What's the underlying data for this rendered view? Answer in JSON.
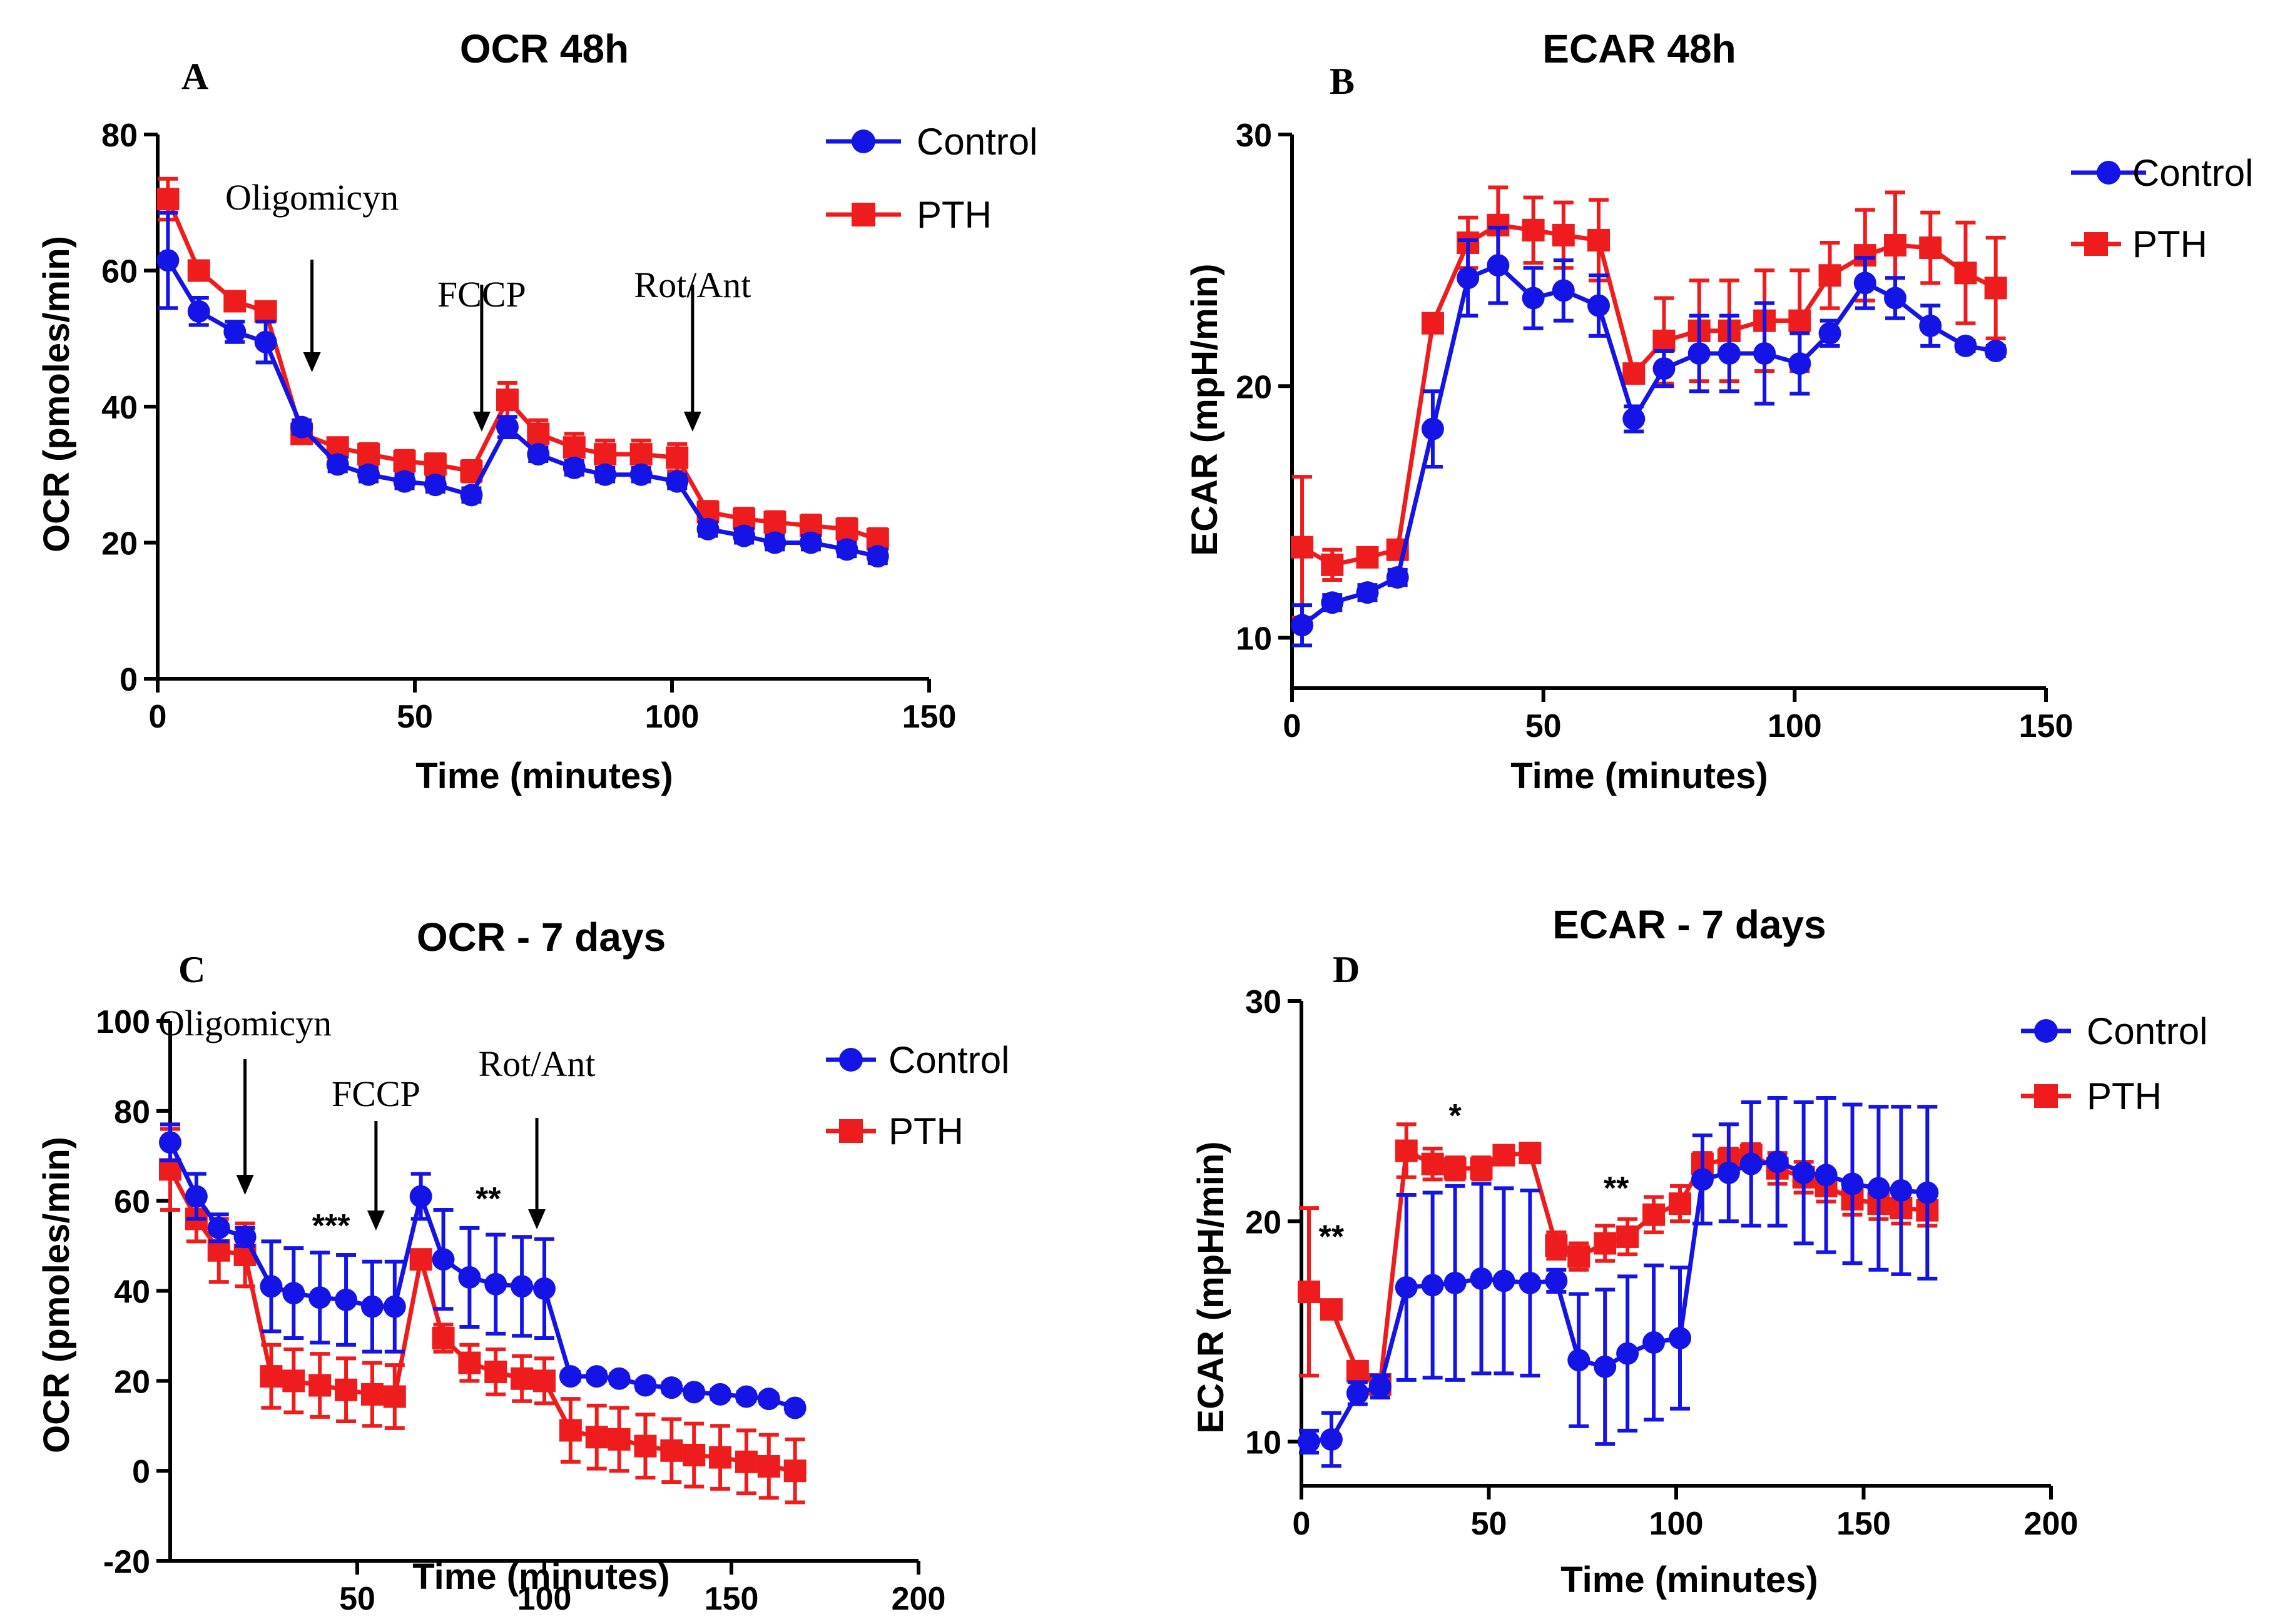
{
  "chart_data": [
    {
      "panel": "A",
      "type": "line",
      "title": "OCR 48h",
      "xlabel": "Time (minutes)",
      "ylabel": "OCR (pmoles/min)",
      "xlim": [
        0,
        150
      ],
      "ylim": [
        0,
        80
      ],
      "xticks": [
        0,
        50,
        100,
        150
      ],
      "yticks": [
        0,
        20,
        40,
        60,
        80
      ],
      "x": [
        2,
        8,
        15,
        21,
        28,
        35,
        41,
        48,
        54,
        61,
        68,
        74,
        81,
        87,
        94,
        101,
        107,
        114,
        120,
        127,
        134,
        140
      ],
      "series": [
        {
          "name": "Control",
          "color": "#1414e6",
          "marker": "circle",
          "values": [
            61.5,
            54,
            51,
            49.5,
            37,
            31.5,
            30,
            29,
            28.5,
            27,
            37,
            33,
            31,
            30,
            30,
            29,
            22,
            21,
            20,
            20,
            19,
            18
          ],
          "errors": [
            7,
            2,
            1.5,
            3,
            1,
            1,
            1,
            1,
            1,
            1,
            1.5,
            1,
            1,
            1,
            1,
            1,
            1,
            1,
            1,
            1,
            1,
            1
          ]
        },
        {
          "name": "PTH",
          "color": "#ee1c1c",
          "marker": "square",
          "values": [
            70.5,
            60,
            55.5,
            54,
            36,
            34,
            33,
            32,
            31.5,
            30.5,
            41,
            36,
            34,
            33,
            33,
            32.5,
            24.5,
            23.5,
            23,
            22.5,
            22,
            20.5
          ],
          "errors": [
            3,
            1,
            1,
            1,
            1,
            1,
            1.5,
            1.5,
            1.5,
            1.5,
            2.5,
            2,
            2,
            2,
            2,
            2,
            1.5,
            1.5,
            1.5,
            1.5,
            1.5,
            1.5
          ]
        }
      ],
      "annotations": [
        {
          "text": "Oligomicyn",
          "x": 30
        },
        {
          "text": "FCCP",
          "x": 63
        },
        {
          "text": "Rot/Ant",
          "x": 104
        }
      ],
      "stars": []
    },
    {
      "panel": "B",
      "type": "line",
      "title": "ECAR 48h",
      "xlabel": "Time (minutes)",
      "ylabel": "ECAR (mpH/min)",
      "xlim": [
        0,
        150
      ],
      "ylim": [
        8,
        30
      ],
      "xticks": [
        0,
        50,
        100,
        150
      ],
      "yticks": [
        10,
        20,
        30
      ],
      "x": [
        2,
        8,
        15,
        21,
        28,
        35,
        41,
        48,
        54,
        61,
        68,
        74,
        81,
        87,
        94,
        101,
        107,
        114,
        120,
        127,
        134,
        140
      ],
      "series": [
        {
          "name": "Control",
          "color": "#1414e6",
          "marker": "circle",
          "values": [
            10.5,
            11.4,
            11.8,
            12.4,
            18.3,
            24.3,
            24.8,
            23.5,
            23.8,
            23.2,
            18.7,
            20.7,
            21.3,
            21.3,
            21.3,
            20.9,
            22.1,
            24.1,
            23.5,
            22.4,
            21.6,
            21.4
          ],
          "errors": [
            0.8,
            0.3,
            0.3,
            0.3,
            1.5,
            1.5,
            1.5,
            1.2,
            1.2,
            1.2,
            0.5,
            0.7,
            1.5,
            1.5,
            2,
            1.2,
            0.5,
            1,
            0.8,
            0.8,
            0.2,
            0.2
          ]
        },
        {
          "name": "PTH",
          "color": "#ee1c1c",
          "marker": "square",
          "values": [
            13.6,
            12.9,
            13.2,
            13.5,
            22.5,
            25.7,
            26.4,
            26.2,
            26.0,
            25.8,
            20.5,
            21.8,
            22.2,
            22.2,
            22.6,
            22.6,
            24.4,
            25.2,
            25.6,
            25.5,
            24.5,
            23.9
          ],
          "errors": [
            2.8,
            0.6,
            0.3,
            0.3,
            0.3,
            1,
            1.5,
            1.3,
            1.3,
            1.6,
            0.3,
            1.7,
            2,
            2,
            2,
            2,
            1.3,
            1.8,
            2.1,
            1.4,
            2,
            2
          ]
        }
      ],
      "annotations": [],
      "stars": []
    },
    {
      "panel": "C",
      "type": "line",
      "title": "OCR - 7 days",
      "xlabel": "Time (minutes)",
      "ylabel": "OCR (pmoles/min)",
      "xlim": [
        0,
        200
      ],
      "ylim": [
        -20,
        100
      ],
      "xticks": [
        50,
        100,
        150,
        200
      ],
      "yticks": [
        -20,
        0,
        20,
        40,
        60,
        80,
        100
      ],
      "x": [
        0,
        7,
        13,
        20,
        27,
        33,
        40,
        47,
        54,
        60,
        67,
        73,
        80,
        87,
        94,
        100,
        107,
        114,
        120,
        127,
        134,
        140,
        147,
        154,
        160,
        167
      ],
      "series": [
        {
          "name": "Control",
          "color": "#1414e6",
          "marker": "circle",
          "values": [
            73,
            61,
            54,
            52,
            41,
            39.5,
            38.5,
            38,
            36.5,
            36.5,
            61,
            47,
            43,
            41.5,
            41,
            40.5,
            21,
            21,
            20.5,
            19,
            18.5,
            17.5,
            17,
            16.5,
            16,
            14
          ],
          "errors": [
            4,
            5,
            3,
            2,
            10,
            10,
            10,
            10,
            10,
            10,
            5,
            11,
            11,
            11,
            11,
            11,
            1,
            1,
            1,
            1,
            1,
            1,
            1,
            1,
            1,
            1
          ]
        },
        {
          "name": "PTH",
          "color": "#ee1c1c",
          "marker": "square",
          "values": [
            67,
            56,
            49,
            48,
            21,
            20,
            19,
            18,
            17,
            16.5,
            47,
            29.5,
            24,
            22,
            20.5,
            20,
            9,
            7.5,
            7,
            5.5,
            4.5,
            3.5,
            3,
            2,
            1,
            0
          ],
          "errors": [
            9,
            5,
            7,
            7,
            7,
            7,
            7,
            7,
            7,
            7,
            2,
            3,
            4,
            5,
            5,
            5,
            7,
            7,
            7,
            7,
            7,
            7,
            7,
            7,
            7,
            7
          ]
        }
      ],
      "annotations": [
        {
          "text": "Oligomicyn",
          "x": 20
        },
        {
          "text": "FCCP",
          "x": 55
        },
        {
          "text": "Rot/Ant",
          "x": 98
        }
      ],
      "stars": [
        {
          "text": "***",
          "x": 43,
          "y": 52
        },
        {
          "text": "**",
          "x": 85,
          "y": 58
        }
      ]
    },
    {
      "panel": "D",
      "type": "line",
      "title": "ECAR - 7 days",
      "xlabel": "Time (minutes)",
      "ylabel": "ECAR (mpH/min)",
      "xlim": [
        0,
        200
      ],
      "ylim": [
        8,
        30
      ],
      "xticks": [
        0,
        50,
        100,
        150,
        200
      ],
      "yticks": [
        10,
        20,
        30
      ],
      "x": [
        2,
        8,
        15,
        21,
        28,
        35,
        41,
        48,
        54,
        61,
        68,
        74,
        81,
        87,
        94,
        101,
        107,
        114,
        120,
        127,
        134,
        140,
        147,
        154,
        160,
        167
      ],
      "series": [
        {
          "name": "Control",
          "color": "#1414e6",
          "marker": "circle",
          "values": [
            10,
            10.1,
            12.2,
            12.5,
            17,
            17.1,
            17.2,
            17.4,
            17.3,
            17.2,
            17.3,
            13.7,
            13.4,
            14,
            14.5,
            14.7,
            21.9,
            22.2,
            22.6,
            22.7,
            22.2,
            22.1,
            21.7,
            21.5,
            21.4,
            21.3
          ],
          "errors": [
            0.5,
            1.2,
            0.5,
            0.5,
            4.2,
            4.2,
            4.4,
            4.3,
            4.2,
            4.2,
            0.5,
            3,
            3.5,
            3.5,
            3.5,
            3.2,
            2,
            2.2,
            2.8,
            2.9,
            3.2,
            3.5,
            3.6,
            3.7,
            3.8,
            3.9
          ]
        },
        {
          "name": "PTH",
          "color": "#ee1c1c",
          "marker": "square",
          "values": [
            16.8,
            16,
            13.2,
            12.6,
            23.2,
            22.6,
            22.4,
            22.4,
            23,
            23.1,
            18.9,
            18.4,
            19,
            19.3,
            20.3,
            20.8,
            22.6,
            22.8,
            23,
            22.4,
            22,
            21.6,
            21,
            20.8,
            20.6,
            20.5
          ],
          "errors": [
            3.8,
            0.3,
            0.3,
            0.3,
            1.2,
            0.7,
            0.5,
            0.5,
            0.3,
            0.3,
            0.6,
            0.6,
            0.8,
            0.8,
            0.8,
            0.8,
            0.5,
            0.5,
            0.5,
            0.7,
            0.7,
            0.7,
            0.7,
            0.7,
            0.7,
            0.7
          ]
        }
      ],
      "annotations": [],
      "stars": [
        {
          "text": "**",
          "x": 8,
          "y": 18.8
        },
        {
          "text": "*",
          "x": 41,
          "y": 24.3
        },
        {
          "text": "**",
          "x": 84,
          "y": 21
        }
      ]
    }
  ]
}
